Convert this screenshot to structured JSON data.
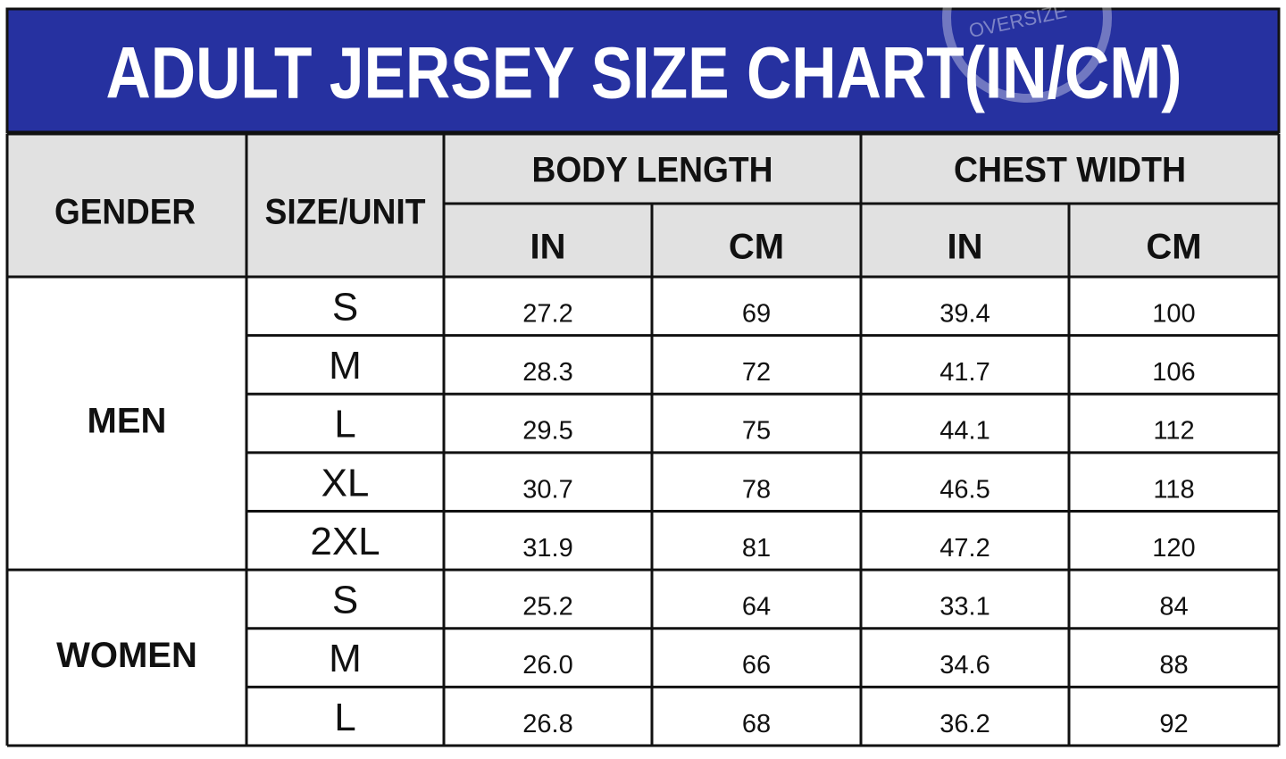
{
  "title": "ADULT JERSEY SIZE CHART(IN/CM)",
  "watermark": "OVERSIZE",
  "header": {
    "gender": "GENDER",
    "size_unit": "SIZE/UNIT",
    "groups": [
      "BODY LENGTH",
      "CHEST WIDTH"
    ],
    "units": [
      "IN",
      "CM",
      "IN",
      "CM"
    ]
  },
  "table": {
    "groups": [
      {
        "gender": "MEN",
        "rows": [
          [
            "S",
            "27.2",
            "69",
            "39.4",
            "100"
          ],
          [
            "M",
            "28.3",
            "72",
            "41.7",
            "106"
          ],
          [
            "L",
            "29.5",
            "75",
            "44.1",
            "112"
          ],
          [
            "XL",
            "30.7",
            "78",
            "46.5",
            "118"
          ],
          [
            "2XL",
            "31.9",
            "81",
            "47.2",
            "120"
          ]
        ]
      },
      {
        "gender": "WOMEN",
        "rows": [
          [
            "S",
            "25.2",
            "64",
            "33.1",
            "84"
          ],
          [
            "M",
            "26.0",
            "66",
            "34.6",
            "88"
          ],
          [
            "L",
            "26.8",
            "68",
            "36.2",
            "92"
          ]
        ]
      }
    ]
  }
}
